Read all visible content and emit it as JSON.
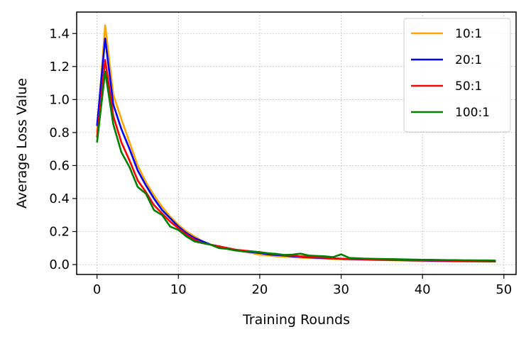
{
  "chart_data": {
    "type": "line",
    "xlabel": "Training Rounds",
    "ylabel": "Average Loss Value",
    "xlim": [
      -2.5,
      51.5
    ],
    "ylim": [
      -0.06,
      1.53
    ],
    "xticks": [
      0,
      10,
      20,
      30,
      40,
      50
    ],
    "yticks": [
      0.0,
      0.2,
      0.4,
      0.6,
      0.8,
      1.0,
      1.2,
      1.4
    ],
    "grid": true,
    "legend_position": "top-right",
    "x": [
      0,
      1,
      2,
      3,
      4,
      5,
      6,
      7,
      8,
      9,
      10,
      11,
      12,
      13,
      14,
      15,
      16,
      17,
      18,
      19,
      20,
      21,
      22,
      23,
      24,
      25,
      26,
      27,
      28,
      29,
      30,
      31,
      32,
      33,
      34,
      35,
      36,
      37,
      38,
      39,
      40,
      41,
      42,
      43,
      44,
      45,
      46,
      47,
      48,
      49
    ],
    "series": [
      {
        "name": "10:1",
        "color": "#FFA500",
        "values": [
          0.8,
          1.45,
          1.03,
          0.88,
          0.74,
          0.6,
          0.5,
          0.42,
          0.35,
          0.29,
          0.24,
          0.2,
          0.17,
          0.14,
          0.12,
          0.11,
          0.1,
          0.09,
          0.08,
          0.07,
          0.06,
          0.055,
          0.05,
          0.048,
          0.045,
          0.042,
          0.04,
          0.038,
          0.036,
          0.034,
          0.032,
          0.031,
          0.03,
          0.029,
          0.028,
          0.027,
          0.026,
          0.025,
          0.024,
          0.023,
          0.022,
          0.021,
          0.021,
          0.02,
          0.02,
          0.019,
          0.019,
          0.018,
          0.018,
          0.018
        ]
      },
      {
        "name": "20:1",
        "color": "#0000FF",
        "values": [
          0.84,
          1.37,
          0.97,
          0.82,
          0.7,
          0.57,
          0.48,
          0.4,
          0.33,
          0.28,
          0.23,
          0.19,
          0.16,
          0.14,
          0.12,
          0.11,
          0.1,
          0.09,
          0.08,
          0.075,
          0.07,
          0.062,
          0.058,
          0.055,
          0.05,
          0.047,
          0.044,
          0.041,
          0.039,
          0.037,
          0.035,
          0.033,
          0.032,
          0.031,
          0.03,
          0.029,
          0.028,
          0.027,
          0.026,
          0.025,
          0.024,
          0.023,
          0.022,
          0.022,
          0.021,
          0.021,
          0.02,
          0.02,
          0.019,
          0.019
        ]
      },
      {
        "name": "50:1",
        "color": "#FF0000",
        "values": [
          0.77,
          1.24,
          0.9,
          0.74,
          0.63,
          0.51,
          0.44,
          0.36,
          0.31,
          0.26,
          0.22,
          0.18,
          0.15,
          0.13,
          0.12,
          0.11,
          0.1,
          0.09,
          0.085,
          0.08,
          0.075,
          0.068,
          0.062,
          0.058,
          0.054,
          0.05,
          0.047,
          0.044,
          0.041,
          0.038,
          0.036,
          0.034,
          0.033,
          0.032,
          0.031,
          0.03,
          0.029,
          0.028,
          0.027,
          0.026,
          0.025,
          0.025,
          0.024,
          0.024,
          0.023,
          0.023,
          0.022,
          0.022,
          0.021,
          0.021
        ]
      },
      {
        "name": "100:1",
        "color": "#008000",
        "values": [
          0.74,
          1.17,
          0.85,
          0.68,
          0.59,
          0.47,
          0.43,
          0.33,
          0.3,
          0.23,
          0.21,
          0.17,
          0.14,
          0.13,
          0.12,
          0.1,
          0.095,
          0.085,
          0.08,
          0.078,
          0.075,
          0.068,
          0.065,
          0.058,
          0.06,
          0.066,
          0.055,
          0.052,
          0.05,
          0.045,
          0.062,
          0.04,
          0.038,
          0.036,
          0.035,
          0.034,
          0.033,
          0.032,
          0.031,
          0.03,
          0.029,
          0.029,
          0.028,
          0.027,
          0.027,
          0.026,
          0.026,
          0.025,
          0.025,
          0.024
        ]
      }
    ]
  }
}
